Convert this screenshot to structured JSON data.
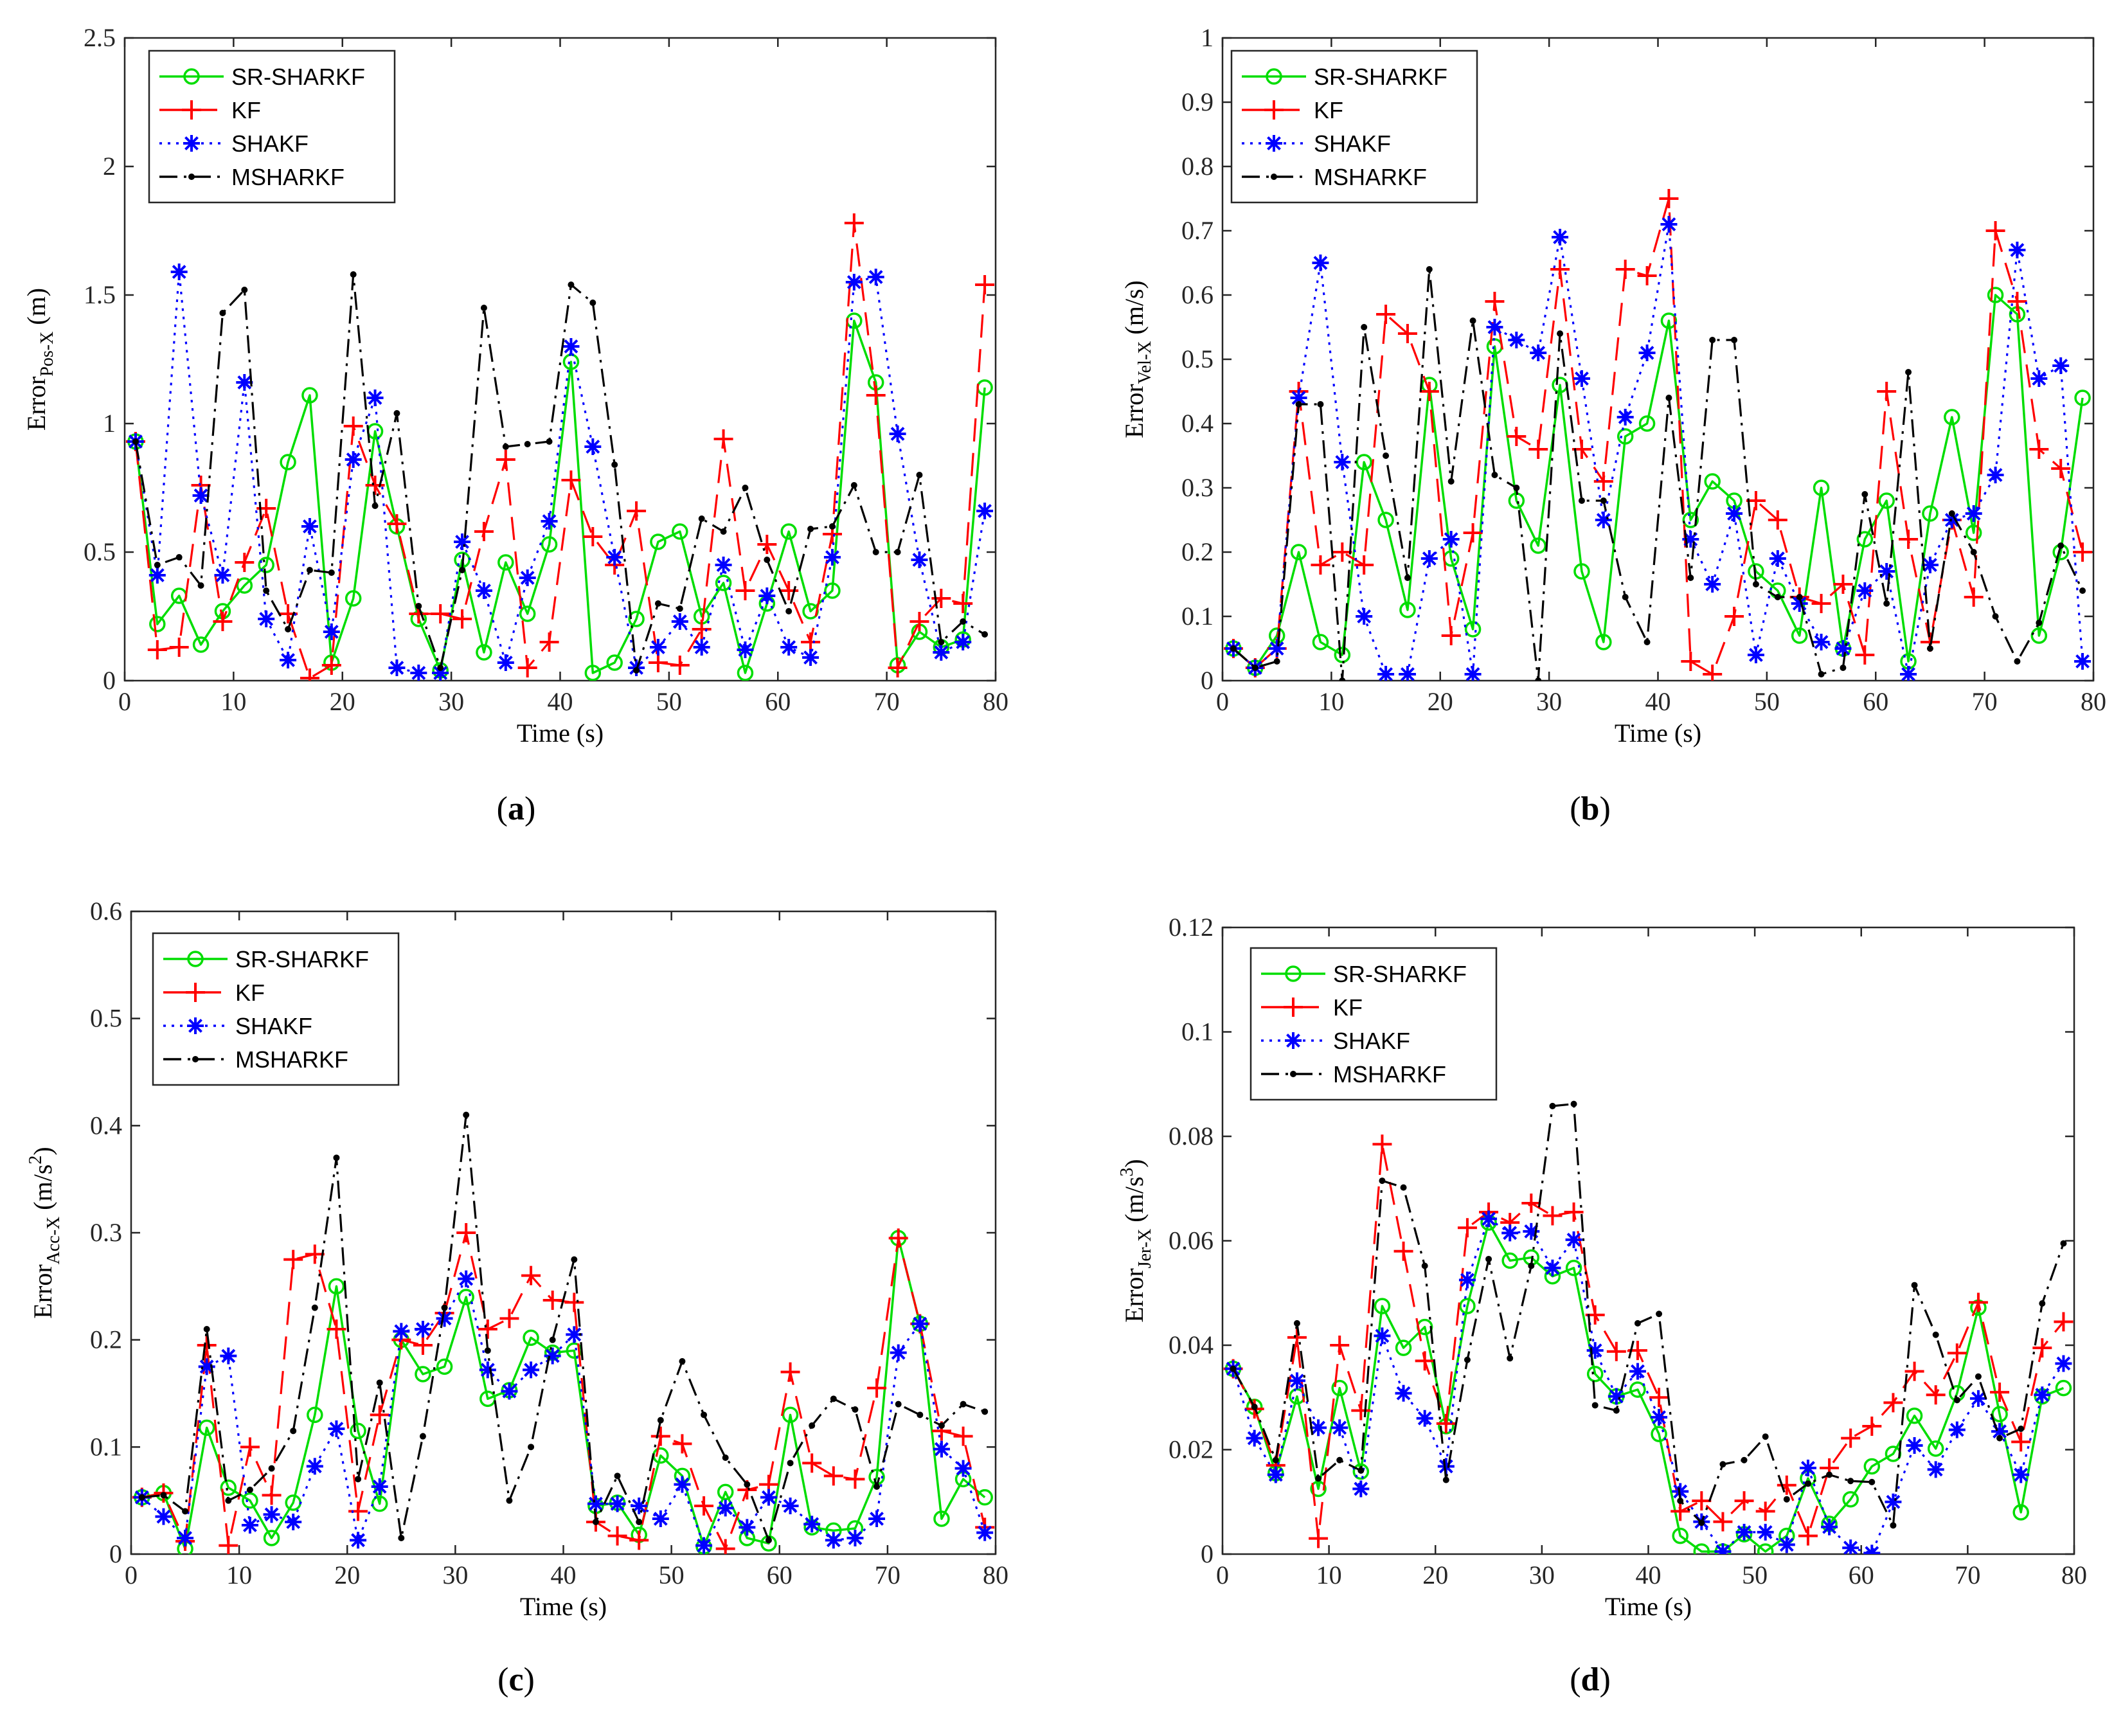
{
  "series_style": [
    {
      "name": "SR-SHARKF",
      "color": "#00dd00",
      "dash": "",
      "marker": "circle"
    },
    {
      "name": "KF",
      "color": "#ff0000",
      "dash": "36 18",
      "marker": "plus"
    },
    {
      "name": "SHAKF",
      "color": "#0000ff",
      "dash": "4 9",
      "marker": "asterisk"
    },
    {
      "name": "MSHARKF",
      "color": "#000000",
      "dash": "28 10 4 10",
      "marker": "dot"
    }
  ],
  "chart_data": [
    {
      "type": "line",
      "panel_label": "(a)",
      "label_letter": "a",
      "xlabel": "Time (s)",
      "ylabel_main": "Error",
      "ylabel_sub": "Pos-X",
      "ylabel_unit": "(m)",
      "ylabel_sup": "",
      "xlim": [
        0,
        80
      ],
      "ylim": [
        0,
        2.5
      ],
      "xticks": [
        "0",
        "10",
        "20",
        "30",
        "40",
        "50",
        "60",
        "70",
        "80"
      ],
      "yticks": [
        "0",
        "0.5",
        "1",
        "1.5",
        "2",
        "2.5"
      ],
      "legend": [
        "SR-SHARKF",
        "KF",
        "SHAKF",
        "MSHARKF"
      ],
      "x": [
        1,
        3,
        5,
        7,
        9,
        11,
        13,
        15,
        17,
        19,
        21,
        23,
        25,
        27,
        29,
        31,
        33,
        35,
        37,
        39,
        41,
        43,
        45,
        47,
        49,
        51,
        53,
        55,
        57,
        59,
        61,
        63,
        65,
        67,
        69,
        71,
        73,
        75,
        77,
        79
      ],
      "series": [
        {
          "name": "SR-SHARKF",
          "values": [
            0.93,
            0.22,
            0.33,
            0.14,
            0.27,
            0.37,
            0.45,
            0.85,
            1.11,
            0.07,
            0.32,
            0.97,
            0.6,
            0.24,
            0.04,
            0.47,
            0.11,
            0.46,
            0.26,
            0.53,
            1.24,
            0.03,
            0.07,
            0.24,
            0.54,
            0.58,
            0.25,
            0.38,
            0.03,
            0.3,
            0.58,
            0.27,
            0.35,
            1.4,
            1.16,
            0.06,
            0.19,
            0.13,
            0.16,
            1.14
          ]
        },
        {
          "name": "KF",
          "values": [
            0.93,
            0.12,
            0.13,
            0.76,
            0.23,
            0.46,
            0.67,
            0.26,
            0.01,
            0.06,
            0.99,
            0.76,
            0.61,
            0.26,
            0.26,
            0.24,
            0.58,
            0.86,
            0.05,
            0.15,
            0.78,
            0.56,
            0.45,
            0.66,
            0.07,
            0.06,
            0.2,
            0.94,
            0.35,
            0.53,
            0.35,
            0.15,
            0.57,
            1.78,
            1.11,
            0.05,
            0.23,
            0.32,
            0.3,
            1.54
          ]
        },
        {
          "name": "SHAKF",
          "values": [
            0.93,
            0.41,
            1.59,
            0.72,
            0.41,
            1.16,
            0.24,
            0.08,
            0.6,
            0.19,
            0.86,
            1.1,
            0.05,
            0.03,
            0.03,
            0.54,
            0.35,
            0.07,
            0.4,
            0.62,
            1.3,
            0.91,
            0.48,
            0.05,
            0.13,
            0.23,
            0.13,
            0.45,
            0.12,
            0.33,
            0.13,
            0.09,
            0.48,
            1.55,
            1.57,
            0.96,
            0.47,
            0.11,
            0.15,
            0.66
          ]
        },
        {
          "name": "MSHARKF",
          "values": [
            0.93,
            0.45,
            0.48,
            0.37,
            1.43,
            1.52,
            0.35,
            0.2,
            0.43,
            0.42,
            1.58,
            0.68,
            1.04,
            0.29,
            0.05,
            0.43,
            1.45,
            0.91,
            0.92,
            0.93,
            1.54,
            1.47,
            0.84,
            0.04,
            0.3,
            0.28,
            0.63,
            0.58,
            0.75,
            0.47,
            0.27,
            0.59,
            0.6,
            0.76,
            0.5,
            0.5,
            0.8,
            0.15,
            0.23,
            0.18
          ]
        }
      ]
    },
    {
      "type": "line",
      "panel_label": "(b)",
      "label_letter": "b",
      "xlabel": "Time (s)",
      "ylabel_main": "Error",
      "ylabel_sub": "Vel-X",
      "ylabel_unit": "(m/s)",
      "ylabel_sup": "",
      "xlim": [
        0,
        80
      ],
      "ylim": [
        0,
        1
      ],
      "xticks": [
        "0",
        "10",
        "20",
        "30",
        "40",
        "50",
        "60",
        "70",
        "80"
      ],
      "yticks": [
        "0",
        "0.1",
        "0.2",
        "0.3",
        "0.4",
        "0.5",
        "0.6",
        "0.7",
        "0.8",
        "0.9",
        "1"
      ],
      "legend": [
        "SR-SHARKF",
        "KF",
        "SHAKF",
        "MSHARKF"
      ],
      "x": [
        1,
        3,
        5,
        7,
        9,
        11,
        13,
        15,
        17,
        19,
        21,
        23,
        25,
        27,
        29,
        31,
        33,
        35,
        37,
        39,
        41,
        43,
        45,
        47,
        49,
        51,
        53,
        55,
        57,
        59,
        61,
        63,
        65,
        67,
        69,
        71,
        73,
        75,
        77,
        79
      ],
      "series": [
        {
          "name": "SR-SHARKF",
          "values": [
            0.05,
            0.02,
            0.07,
            0.2,
            0.06,
            0.04,
            0.34,
            0.25,
            0.11,
            0.46,
            0.19,
            0.08,
            0.52,
            0.28,
            0.21,
            0.46,
            0.17,
            0.06,
            0.38,
            0.4,
            0.56,
            0.25,
            0.31,
            0.28,
            0.17,
            0.14,
            0.07,
            0.3,
            0.05,
            0.22,
            0.28,
            0.03,
            0.26,
            0.41,
            0.23,
            0.6,
            0.57,
            0.07,
            0.2,
            0.44
          ]
        },
        {
          "name": "KF",
          "values": [
            0.05,
            0.02,
            0.05,
            0.45,
            0.18,
            0.2,
            0.18,
            0.57,
            0.54,
            0.45,
            0.07,
            0.23,
            0.59,
            0.38,
            0.36,
            0.64,
            0.36,
            0.31,
            0.64,
            0.63,
            0.75,
            0.03,
            0.01,
            0.1,
            0.28,
            0.25,
            0.13,
            0.12,
            0.15,
            0.04,
            0.45,
            0.22,
            0.06,
            0.25,
            0.13,
            0.7,
            0.59,
            0.36,
            0.33,
            0.2
          ]
        },
        {
          "name": "SHAKF",
          "values": [
            0.05,
            0.02,
            0.05,
            0.44,
            0.65,
            0.34,
            0.1,
            0.01,
            0.01,
            0.19,
            0.22,
            0.01,
            0.55,
            0.53,
            0.51,
            0.69,
            0.47,
            0.25,
            0.41,
            0.51,
            0.71,
            0.22,
            0.15,
            0.26,
            0.04,
            0.19,
            0.12,
            0.06,
            0.05,
            0.14,
            0.17,
            0.01,
            0.18,
            0.25,
            0.26,
            0.32,
            0.67,
            0.47,
            0.49,
            0.03
          ]
        },
        {
          "name": "MSHARKF",
          "values": [
            0.05,
            0.02,
            0.03,
            0.43,
            0.43,
            0.0,
            0.55,
            0.35,
            0.16,
            0.64,
            0.31,
            0.56,
            0.32,
            0.3,
            0.0,
            0.54,
            0.28,
            0.28,
            0.13,
            0.06,
            0.44,
            0.16,
            0.53,
            0.53,
            0.15,
            0.13,
            0.13,
            0.01,
            0.02,
            0.29,
            0.12,
            0.48,
            0.05,
            0.26,
            0.2,
            0.1,
            0.03,
            0.09,
            0.21,
            0.14
          ]
        }
      ]
    },
    {
      "type": "line",
      "panel_label": "(c)",
      "label_letter": "c",
      "xlabel": "Time (s)",
      "ylabel_main": "Error",
      "ylabel_sub": "Acc-X",
      "ylabel_unit": "(m/s",
      "ylabel_sup": "2",
      "xlim": [
        0,
        80
      ],
      "ylim": [
        0,
        0.6
      ],
      "xticks": [
        "0",
        "10",
        "20",
        "30",
        "40",
        "50",
        "60",
        "70",
        "80"
      ],
      "yticks": [
        "0",
        "0.1",
        "0.2",
        "0.3",
        "0.4",
        "0.5",
        "0.6"
      ],
      "legend": [
        "SR-SHARKF",
        "KF",
        "SHAKF",
        "MSHARKF"
      ],
      "x": [
        1,
        3,
        5,
        7,
        9,
        11,
        13,
        15,
        17,
        19,
        21,
        23,
        25,
        27,
        29,
        31,
        33,
        35,
        37,
        39,
        41,
        43,
        45,
        47,
        49,
        51,
        53,
        55,
        57,
        59,
        61,
        63,
        65,
        67,
        69,
        71,
        73,
        75,
        77,
        79
      ],
      "series": [
        {
          "name": "SR-SHARKF",
          "values": [
            0.053,
            0.057,
            0.005,
            0.118,
            0.062,
            0.05,
            0.015,
            0.048,
            0.13,
            0.25,
            0.115,
            0.047,
            0.2,
            0.168,
            0.175,
            0.24,
            0.145,
            0.153,
            0.202,
            0.188,
            0.19,
            0.045,
            0.048,
            0.018,
            0.092,
            0.073,
            0.007,
            0.058,
            0.015,
            0.01,
            0.13,
            0.025,
            0.022,
            0.024,
            0.072,
            0.295,
            0.215,
            0.033,
            0.07,
            0.053
          ]
        },
        {
          "name": "KF",
          "values": [
            0.053,
            0.057,
            0.012,
            0.195,
            0.008,
            0.1,
            0.055,
            0.275,
            0.28,
            0.21,
            0.04,
            0.13,
            0.2,
            0.195,
            0.225,
            0.3,
            0.21,
            0.22,
            0.26,
            0.237,
            0.235,
            0.03,
            0.017,
            0.013,
            0.11,
            0.103,
            0.045,
            0.005,
            0.06,
            0.065,
            0.17,
            0.085,
            0.073,
            0.07,
            0.155,
            0.295,
            0.215,
            0.115,
            0.11,
            0.025
          ]
        },
        {
          "name": "SHAKF",
          "values": [
            0.053,
            0.035,
            0.015,
            0.175,
            0.185,
            0.027,
            0.037,
            0.03,
            0.082,
            0.117,
            0.013,
            0.063,
            0.208,
            0.21,
            0.22,
            0.257,
            0.172,
            0.152,
            0.172,
            0.185,
            0.205,
            0.047,
            0.047,
            0.045,
            0.033,
            0.065,
            0.008,
            0.043,
            0.025,
            0.053,
            0.045,
            0.028,
            0.013,
            0.015,
            0.033,
            0.188,
            0.215,
            0.098,
            0.08,
            0.02
          ]
        },
        {
          "name": "MSHARKF",
          "values": [
            0.053,
            0.055,
            0.04,
            0.21,
            0.05,
            0.06,
            0.08,
            0.115,
            0.23,
            0.37,
            0.07,
            0.16,
            0.015,
            0.11,
            0.23,
            0.41,
            0.19,
            0.05,
            0.1,
            0.2,
            0.275,
            0.03,
            0.073,
            0.03,
            0.125,
            0.18,
            0.13,
            0.09,
            0.065,
            0.013,
            0.085,
            0.12,
            0.145,
            0.135,
            0.063,
            0.14,
            0.13,
            0.12,
            0.14,
            0.133
          ]
        }
      ]
    },
    {
      "type": "line",
      "panel_label": "(d)",
      "label_letter": "d",
      "xlabel": "Time (s)",
      "ylabel_main": "Error",
      "ylabel_sub": "Jer-X",
      "ylabel_unit": "(m/s",
      "ylabel_sup": "3",
      "xlim": [
        0,
        80
      ],
      "ylim": [
        0,
        0.12
      ],
      "xticks": [
        "0",
        "10",
        "20",
        "30",
        "40",
        "50",
        "60",
        "70",
        "80"
      ],
      "yticks": [
        "0",
        "0.02",
        "0.04",
        "0.06",
        "0.08",
        "0.1",
        "0.12"
      ],
      "legend": [
        "SR-SHARKF",
        "KF",
        "SHAKF",
        "MSHARKF"
      ],
      "x": [
        1,
        3,
        5,
        7,
        9,
        11,
        13,
        15,
        17,
        19,
        21,
        23,
        25,
        27,
        29,
        31,
        33,
        35,
        37,
        39,
        41,
        43,
        45,
        47,
        49,
        51,
        53,
        55,
        57,
        59,
        61,
        63,
        65,
        67,
        69,
        71,
        73,
        75,
        77,
        79
      ],
      "series": [
        {
          "name": "SR-SHARKF",
          "values": [
            0.0355,
            0.0282,
            0.0155,
            0.0302,
            0.0125,
            0.0318,
            0.0158,
            0.0475,
            0.0395,
            0.0435,
            0.0245,
            0.0475,
            0.0635,
            0.0562,
            0.0568,
            0.0532,
            0.0548,
            0.0345,
            0.0302,
            0.0315,
            0.023,
            0.0035,
            0.0005,
            0.0005,
            0.0038,
            0.0005,
            0.0035,
            0.0145,
            0.0058,
            0.0105,
            0.0168,
            0.0192,
            0.0265,
            0.0202,
            0.0308,
            0.0472,
            0.0268,
            0.008,
            0.0302,
            0.0318
          ]
        },
        {
          "name": "KF",
          "values": [
            0.0355,
            0.0278,
            0.017,
            0.0415,
            0.003,
            0.04,
            0.0275,
            0.0785,
            0.058,
            0.037,
            0.025,
            0.0625,
            0.0655,
            0.0635,
            0.0672,
            0.0648,
            0.0655,
            0.0458,
            0.0388,
            0.039,
            0.03,
            0.0082,
            0.0102,
            0.0062,
            0.0102,
            0.0082,
            0.0132,
            0.0035,
            0.0165,
            0.0222,
            0.0245,
            0.029,
            0.035,
            0.0305,
            0.0385,
            0.0482,
            0.031,
            0.0215,
            0.0395,
            0.0445
          ]
        },
        {
          "name": "SHAKF",
          "values": [
            0.0355,
            0.0222,
            0.0152,
            0.0332,
            0.0242,
            0.0242,
            0.0125,
            0.0418,
            0.0308,
            0.026,
            0.0168,
            0.0525,
            0.0642,
            0.0615,
            0.0618,
            0.0548,
            0.0602,
            0.039,
            0.0302,
            0.035,
            0.0262,
            0.012,
            0.0062,
            0.0005,
            0.0042,
            0.0042,
            0.0018,
            0.0165,
            0.0052,
            0.0012,
            0.0002,
            0.01,
            0.0208,
            0.0162,
            0.0238,
            0.0298,
            0.0235,
            0.0152,
            0.0305,
            0.0365
          ]
        },
        {
          "name": "MSHARKF",
          "values": [
            0.0355,
            0.0282,
            0.018,
            0.0442,
            0.0145,
            0.018,
            0.016,
            0.0715,
            0.0702,
            0.0552,
            0.0142,
            0.0372,
            0.0565,
            0.0375,
            0.0552,
            0.0858,
            0.0862,
            0.0285,
            0.0275,
            0.0442,
            0.046,
            0.0102,
            0.006,
            0.0172,
            0.018,
            0.0225,
            0.0105,
            0.0135,
            0.0152,
            0.014,
            0.0138,
            0.0055,
            0.0515,
            0.042,
            0.0295,
            0.034,
            0.0222,
            0.024,
            0.048,
            0.0595
          ]
        }
      ]
    }
  ]
}
